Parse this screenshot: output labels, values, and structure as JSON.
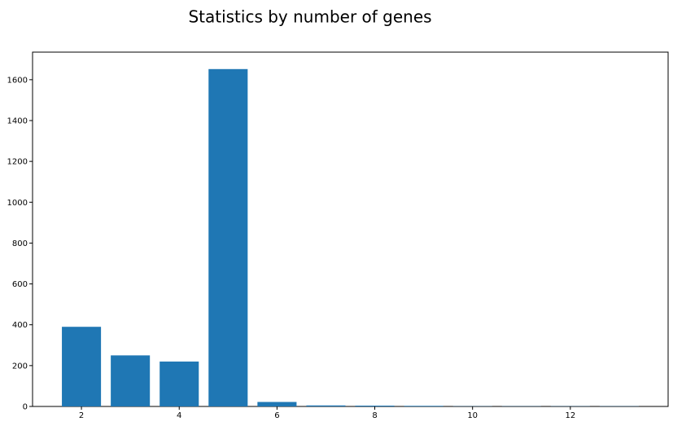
{
  "chart_data": {
    "type": "bar",
    "title": "Statistics by number of genes",
    "xlabel": "",
    "ylabel": "",
    "x": [
      2,
      3,
      4,
      5,
      6,
      7,
      8,
      9,
      10,
      11,
      12,
      13
    ],
    "values": [
      390,
      250,
      220,
      1652,
      22,
      5,
      4,
      3,
      1,
      1,
      1,
      1
    ],
    "xlim": [
      1.0,
      14.0
    ],
    "ylim": [
      0,
      1735
    ],
    "xticks": [
      2,
      4,
      6,
      8,
      10,
      12
    ],
    "yticks": [
      0,
      200,
      400,
      600,
      800,
      1000,
      1200,
      1400,
      1600
    ],
    "bar_width": 0.8,
    "color": "#1f77b4",
    "grid": false,
    "legend": "none"
  }
}
